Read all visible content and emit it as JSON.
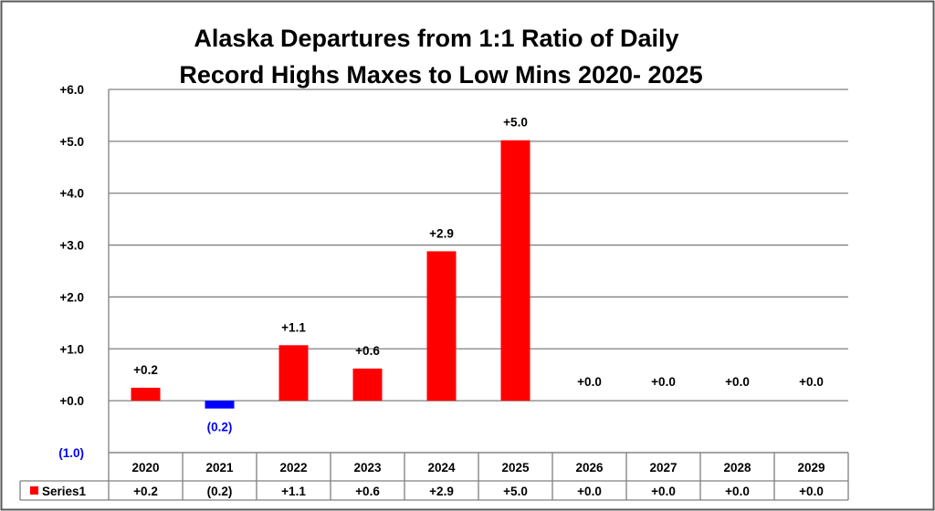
{
  "chart_data": {
    "type": "bar",
    "title_lines": [
      "Alaska Departures from 1:1 Ratio of Daily",
      "Record Highs Maxes to Low Mins 2020- 2025"
    ],
    "categories": [
      "2020",
      "2021",
      "2022",
      "2023",
      "2024",
      "2025",
      "2026",
      "2027",
      "2028",
      "2029"
    ],
    "series": [
      {
        "name": "Series1",
        "values": [
          0.25,
          -0.15,
          1.07,
          0.62,
          2.88,
          5.02,
          0.0,
          0.0,
          0.0,
          0.0
        ],
        "labels": [
          "+0.2",
          "(0.2)",
          "+1.1",
          "+0.6",
          "+2.9",
          "+5.0",
          "+0.0",
          "+0.0",
          "+0.0",
          "+0.0"
        ]
      }
    ],
    "y_ticks": [
      {
        "value": 6,
        "label": "+6.0"
      },
      {
        "value": 5,
        "label": "+5.0"
      },
      {
        "value": 4,
        "label": "+4.0"
      },
      {
        "value": 3,
        "label": "+3.0"
      },
      {
        "value": 2,
        "label": "+2.0"
      },
      {
        "value": 1,
        "label": "+1.0"
      },
      {
        "value": 0,
        "label": "+0.0"
      },
      {
        "value": -1,
        "label": "(1.0)"
      }
    ],
    "ylim": [
      -1,
      6
    ],
    "grid": "horizontal",
    "data_table": true,
    "colors": {
      "positive": "#ff0000",
      "negative": "#0000ff",
      "grid": "#808080"
    }
  }
}
